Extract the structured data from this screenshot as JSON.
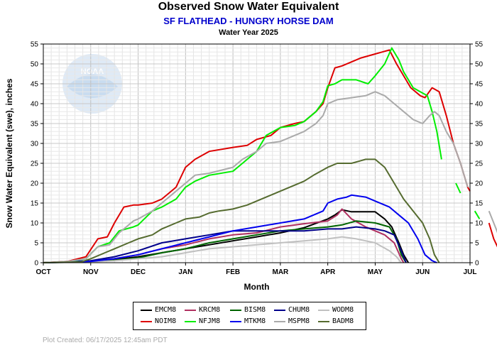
{
  "header": {
    "title": "Observed Snow Water Equivalent",
    "subtitle": "SF FLATHEAD - HUNGRY HORSE DAM",
    "subtitle2": "Water Year 2025"
  },
  "footer": {
    "text": "Plot Created: 06/17/2025 12:45am PDT"
  },
  "logo": {
    "text": "NOAA"
  },
  "chart_data": {
    "type": "line",
    "xlabel": "Month",
    "ylabel": "Snow Water Equivalent (swe),  inches",
    "ylim": [
      0,
      55
    ],
    "xlim": [
      0,
      9
    ],
    "yticks": [
      0,
      5,
      10,
      15,
      20,
      25,
      30,
      35,
      40,
      45,
      50,
      55
    ],
    "month_ticks": [
      "OCT",
      "NOV",
      "DEC",
      "JAN",
      "FEB",
      "MAR",
      "APR",
      "MAY",
      "JUN",
      "JUL"
    ],
    "grid": true,
    "right_axis": true,
    "legend_position": "bottom",
    "series": [
      {
        "name": "EMCM8",
        "color": "#000000",
        "points": [
          [
            0,
            0
          ],
          [
            1,
            0.3
          ],
          [
            1.5,
            0.8
          ],
          [
            2,
            1.5
          ],
          [
            2.5,
            2.5
          ],
          [
            3,
            3.5
          ],
          [
            3.5,
            4.5
          ],
          [
            4,
            5.5
          ],
          [
            4.5,
            6.5
          ],
          [
            5,
            7.5
          ],
          [
            5.5,
            8.8
          ],
          [
            6.0,
            11
          ],
          [
            6.15,
            12
          ],
          [
            6.3,
            13.3
          ],
          [
            6.5,
            12.8
          ],
          [
            7,
            12.8
          ],
          [
            7.2,
            11
          ],
          [
            7.35,
            9
          ],
          [
            7.5,
            5
          ],
          [
            7.6,
            2
          ],
          [
            7.7,
            0
          ]
        ]
      },
      {
        "name": "KRCM8",
        "color": "#b03060",
        "points": [
          [
            0,
            0
          ],
          [
            1,
            0.4
          ],
          [
            1.5,
            1
          ],
          [
            2,
            2
          ],
          [
            2.5,
            3.5
          ],
          [
            3,
            4.5
          ],
          [
            3.5,
            6
          ],
          [
            4,
            7
          ],
          [
            4.5,
            7.5
          ],
          [
            5,
            9
          ],
          [
            5.5,
            9.8
          ],
          [
            6.0,
            10.5
          ],
          [
            6.2,
            12
          ],
          [
            6.3,
            13.5
          ],
          [
            6.5,
            11
          ],
          [
            6.8,
            9
          ],
          [
            7,
            8
          ],
          [
            7.2,
            7
          ],
          [
            7.4,
            5
          ],
          [
            7.55,
            1
          ],
          [
            7.6,
            0
          ]
        ]
      },
      {
        "name": "BISM8",
        "color": "#006400",
        "points": [
          [
            0,
            0
          ],
          [
            1,
            0.2
          ],
          [
            1.5,
            0.6
          ],
          [
            2,
            1.2
          ],
          [
            2.5,
            2.5
          ],
          [
            3,
            3.5
          ],
          [
            3.5,
            5
          ],
          [
            4,
            6
          ],
          [
            4.5,
            7
          ],
          [
            5,
            8
          ],
          [
            5.5,
            8.5
          ],
          [
            6.0,
            9
          ],
          [
            6.3,
            9.5
          ],
          [
            6.6,
            10.5
          ],
          [
            7,
            10
          ],
          [
            7.3,
            9
          ],
          [
            7.45,
            6
          ],
          [
            7.55,
            2
          ],
          [
            7.65,
            0
          ]
        ]
      },
      {
        "name": "CHUM8",
        "color": "#00008b",
        "points": [
          [
            0,
            0
          ],
          [
            1,
            0.5
          ],
          [
            1.5,
            1.5
          ],
          [
            2,
            3
          ],
          [
            2.5,
            5
          ],
          [
            3,
            6
          ],
          [
            3.5,
            7
          ],
          [
            4,
            8
          ],
          [
            4.5,
            8
          ],
          [
            5,
            8
          ],
          [
            5.5,
            8
          ],
          [
            6.0,
            8.5
          ],
          [
            6.3,
            8.5
          ],
          [
            6.6,
            9
          ],
          [
            7,
            8.5
          ],
          [
            7.2,
            8
          ],
          [
            7.4,
            7
          ],
          [
            7.55,
            3
          ],
          [
            7.65,
            0
          ]
        ]
      },
      {
        "name": "WODM8",
        "color": "#c0c0c0",
        "points": [
          [
            0,
            0
          ],
          [
            1,
            0.2
          ],
          [
            1.5,
            0.5
          ],
          [
            2,
            1
          ],
          [
            2.5,
            1.5
          ],
          [
            3,
            2.5
          ],
          [
            3.5,
            3.5
          ],
          [
            4,
            4
          ],
          [
            4.5,
            4.5
          ],
          [
            5,
            5
          ],
          [
            5.5,
            5.5
          ],
          [
            6.0,
            6
          ],
          [
            6.3,
            6.5
          ],
          [
            6.6,
            6
          ],
          [
            7,
            5
          ],
          [
            7.3,
            3
          ],
          [
            7.45,
            1.5
          ],
          [
            7.55,
            0
          ]
        ]
      },
      {
        "name": "NOIM8",
        "color": "#dd0000",
        "points": [
          [
            0,
            0
          ],
          [
            0.5,
            0.3
          ],
          [
            0.9,
            1.5
          ],
          [
            1.15,
            6
          ],
          [
            1.35,
            6.5
          ],
          [
            1.5,
            10
          ],
          [
            1.7,
            14
          ],
          [
            1.9,
            14.5
          ],
          [
            2,
            14.5
          ],
          [
            2.3,
            15
          ],
          [
            2.5,
            16
          ],
          [
            2.8,
            19
          ],
          [
            3,
            24
          ],
          [
            3.2,
            26
          ],
          [
            3.5,
            28
          ],
          [
            4,
            29
          ],
          [
            4.3,
            29.5
          ],
          [
            4.5,
            31
          ],
          [
            4.8,
            32
          ],
          [
            5,
            34
          ],
          [
            5.3,
            35
          ],
          [
            5.5,
            35.5
          ],
          [
            5.75,
            38
          ],
          [
            5.9,
            40
          ],
          [
            6.0,
            44
          ],
          [
            6.15,
            49
          ],
          [
            6.3,
            49.5
          ],
          [
            6.5,
            50.5
          ],
          [
            6.7,
            51.5
          ],
          [
            7,
            52.5
          ],
          [
            7.15,
            53
          ],
          [
            7.3,
            53.5
          ],
          [
            7.45,
            50
          ],
          [
            7.6,
            47
          ],
          [
            7.75,
            44
          ],
          [
            7.95,
            42
          ],
          [
            8.05,
            41.5
          ],
          [
            8.2,
            44
          ],
          [
            8.35,
            43
          ],
          [
            8.5,
            37
          ],
          [
            8.65,
            30
          ],
          [
            8.8,
            25
          ],
          [
            8.95,
            19
          ],
          [
            9.0,
            18
          ]
        ]
      },
      {
        "name": "NFJM8",
        "color": "#00ee00",
        "points": [
          [
            0,
            0
          ],
          [
            0.5,
            0.2
          ],
          [
            0.9,
            1
          ],
          [
            1.15,
            4
          ],
          [
            1.4,
            5
          ],
          [
            1.6,
            8
          ],
          [
            1.9,
            9
          ],
          [
            2,
            9.5
          ],
          [
            2.3,
            13
          ],
          [
            2.5,
            14
          ],
          [
            2.8,
            16
          ],
          [
            3,
            19
          ],
          [
            3.2,
            20.5
          ],
          [
            3.5,
            22
          ],
          [
            4,
            23
          ],
          [
            4.2,
            25
          ],
          [
            4.5,
            28
          ],
          [
            4.7,
            32
          ],
          [
            5,
            34
          ],
          [
            5.3,
            34.5
          ],
          [
            5.5,
            35.5
          ],
          [
            5.75,
            38
          ],
          [
            5.9,
            40.5
          ],
          [
            6.0,
            44.5
          ],
          [
            6.15,
            45
          ],
          [
            6.3,
            46
          ],
          [
            6.6,
            46
          ],
          [
            6.85,
            45
          ],
          [
            7,
            47
          ],
          [
            7.2,
            50
          ],
          [
            7.35,
            54
          ],
          [
            7.5,
            51
          ],
          [
            7.6,
            48
          ],
          [
            7.7,
            46
          ],
          [
            7.8,
            44
          ],
          [
            7.95,
            43
          ],
          [
            8.1,
            42
          ],
          [
            8.2,
            38
          ],
          [
            8.3,
            33
          ],
          [
            8.4,
            26
          ]
        ]
      },
      {
        "name": "MTKM8",
        "color": "#0000ee",
        "points": [
          [
            0,
            0
          ],
          [
            1,
            0.3
          ],
          [
            1.5,
            1
          ],
          [
            2,
            2
          ],
          [
            2.5,
            3.5
          ],
          [
            3,
            5
          ],
          [
            3.5,
            6.5
          ],
          [
            4,
            8
          ],
          [
            4.5,
            9
          ],
          [
            5,
            10
          ],
          [
            5.5,
            11
          ],
          [
            5.9,
            13
          ],
          [
            6.0,
            15
          ],
          [
            6.2,
            16
          ],
          [
            6.4,
            16.5
          ],
          [
            6.5,
            17
          ],
          [
            6.8,
            16.5
          ],
          [
            7,
            15.5
          ],
          [
            7.3,
            14
          ],
          [
            7.5,
            12
          ],
          [
            7.7,
            10
          ],
          [
            7.9,
            6
          ],
          [
            8.05,
            2
          ],
          [
            8.2,
            0.5
          ],
          [
            8.3,
            0
          ]
        ]
      },
      {
        "name": "MSPM8",
        "color": "#aaaaaa",
        "points": [
          [
            0,
            0
          ],
          [
            0.5,
            0.3
          ],
          [
            0.9,
            1
          ],
          [
            1.15,
            4
          ],
          [
            1.4,
            4.5
          ],
          [
            1.6,
            7.5
          ],
          [
            1.9,
            10.5
          ],
          [
            2,
            11
          ],
          [
            2.3,
            13
          ],
          [
            2.5,
            15
          ],
          [
            2.8,
            18
          ],
          [
            3,
            20
          ],
          [
            3.2,
            22
          ],
          [
            3.5,
            22.5
          ],
          [
            4,
            24
          ],
          [
            4.2,
            26
          ],
          [
            4.5,
            28
          ],
          [
            4.7,
            30
          ],
          [
            5,
            30.5
          ],
          [
            5.3,
            32
          ],
          [
            5.5,
            33
          ],
          [
            5.75,
            35
          ],
          [
            5.9,
            37
          ],
          [
            6.0,
            40
          ],
          [
            6.2,
            41
          ],
          [
            6.5,
            41.5
          ],
          [
            6.8,
            42
          ],
          [
            7,
            43
          ],
          [
            7.2,
            42
          ],
          [
            7.4,
            40
          ],
          [
            7.6,
            38
          ],
          [
            7.8,
            36
          ],
          [
            8,
            35
          ],
          [
            8.15,
            37
          ],
          [
            8.25,
            38
          ],
          [
            8.35,
            37
          ],
          [
            8.5,
            33
          ],
          [
            8.65,
            30
          ],
          [
            8.8,
            25
          ],
          [
            8.95,
            19
          ]
        ]
      },
      {
        "name": "BADM8",
        "color": "#556b2f",
        "points": [
          [
            0,
            0
          ],
          [
            0.8,
            0.2
          ],
          [
            1,
            1
          ],
          [
            1.3,
            2.5
          ],
          [
            1.5,
            3.5
          ],
          [
            1.8,
            5
          ],
          [
            2,
            6
          ],
          [
            2.3,
            7
          ],
          [
            2.5,
            8.5
          ],
          [
            2.8,
            10
          ],
          [
            3,
            11
          ],
          [
            3.3,
            11.5
          ],
          [
            3.5,
            12.5
          ],
          [
            3.7,
            13
          ],
          [
            4,
            13.5
          ],
          [
            4.3,
            14.5
          ],
          [
            4.5,
            15.5
          ],
          [
            4.8,
            17
          ],
          [
            5,
            18
          ],
          [
            5.3,
            19.5
          ],
          [
            5.5,
            20.5
          ],
          [
            5.7,
            22
          ],
          [
            6,
            24
          ],
          [
            6.2,
            25
          ],
          [
            6.5,
            25
          ],
          [
            6.8,
            26
          ],
          [
            7,
            26
          ],
          [
            7.2,
            24
          ],
          [
            7.4,
            20
          ],
          [
            7.6,
            16
          ],
          [
            7.8,
            13
          ],
          [
            8,
            10
          ],
          [
            8.15,
            6
          ],
          [
            8.25,
            2
          ],
          [
            8.35,
            0
          ]
        ]
      }
    ],
    "extra_segments": [
      {
        "series": "NOIM8",
        "points": [
          [
            9.4,
            10
          ],
          [
            9.5,
            6
          ],
          [
            9.6,
            3.5
          ]
        ]
      },
      {
        "series": "NFJM8",
        "points": [
          [
            8.7,
            20
          ],
          [
            8.8,
            17.5
          ]
        ]
      },
      {
        "series": "NFJM8",
        "points": [
          [
            9.1,
            13
          ],
          [
            9.2,
            11
          ]
        ]
      },
      {
        "series": "MSPM8",
        "points": [
          [
            9.4,
            13
          ],
          [
            9.5,
            10
          ],
          [
            9.6,
            7
          ]
        ]
      }
    ],
    "legend": [
      "EMCM8",
      "KRCM8",
      "BISM8",
      "CHUM8",
      "WODM8",
      "NOIM8",
      "NFJM8",
      "MTKM8",
      "MSPM8",
      "BADM8"
    ]
  }
}
